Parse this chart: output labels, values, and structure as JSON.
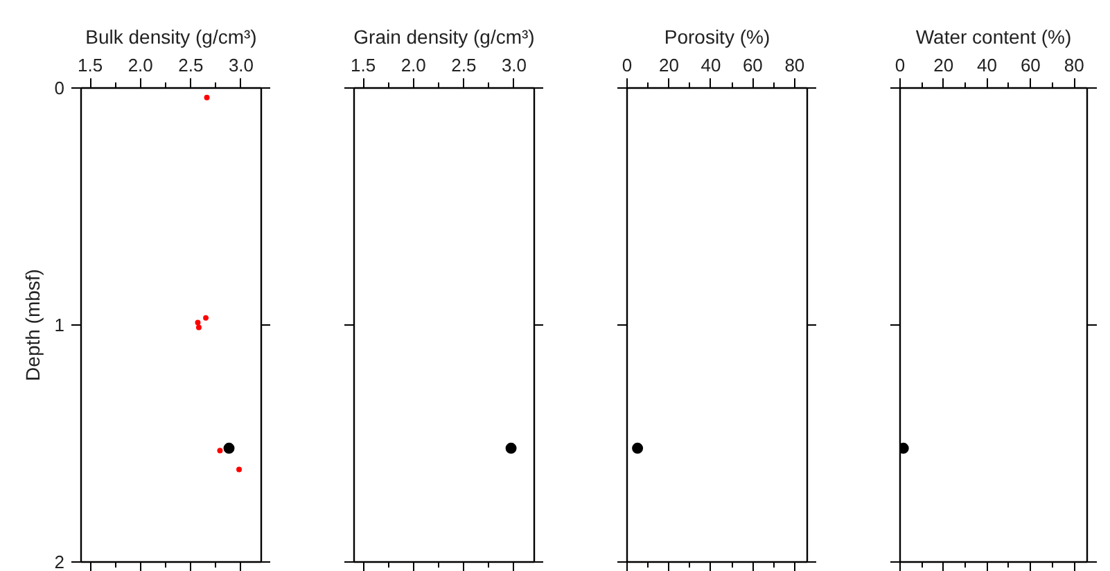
{
  "chart_data": [
    {
      "type": "scatter",
      "xlabel": "Bulk density (g/cm³)",
      "ylabel": "Depth (mbsf)",
      "xlim": [
        1.41,
        3.2
      ],
      "ylim": [
        2,
        0
      ],
      "xticks": [
        {
          "value": 1.5,
          "label": "1.5"
        },
        {
          "value": 1.75,
          "label": null
        },
        {
          "value": 2.0,
          "label": "2.0"
        },
        {
          "value": 2.25,
          "label": null
        },
        {
          "value": 2.5,
          "label": "2.5"
        },
        {
          "value": 2.75,
          "label": null
        },
        {
          "value": 3.0,
          "label": "3.0"
        }
      ],
      "yticks": [
        0,
        1,
        2
      ],
      "grid": false,
      "marker": "circle",
      "series": [
        {
          "color": "#ff0000",
          "x": [
            2.66,
            2.65,
            2.57,
            2.58,
            2.79,
            2.98
          ],
          "values": [
            0.04,
            0.97,
            0.99,
            1.01,
            1.53,
            1.61
          ]
        },
        {
          "color": "#000000",
          "x": [
            2.88
          ],
          "values": [
            1.52
          ]
        }
      ]
    },
    {
      "type": "scatter",
      "xlabel": "Grain density (g/cm³)",
      "xlim": [
        1.41,
        3.2
      ],
      "ylim": [
        2,
        0
      ],
      "xticks": [
        {
          "value": 1.5,
          "label": "1.5"
        },
        {
          "value": 1.75,
          "label": null
        },
        {
          "value": 2.0,
          "label": "2.0"
        },
        {
          "value": 2.25,
          "label": null
        },
        {
          "value": 2.5,
          "label": "2.5"
        },
        {
          "value": 2.75,
          "label": null
        },
        {
          "value": 3.0,
          "label": "3.0"
        }
      ],
      "yticks": [
        0,
        1,
        2
      ],
      "tick_labels": "x",
      "grid": false,
      "marker": "circle",
      "series": [
        {
          "color": "#000000",
          "x": [
            2.97
          ],
          "values": [
            1.52
          ]
        }
      ]
    },
    {
      "type": "scatter",
      "xlabel": "Porosity (%)",
      "xlim": [
        0,
        86
      ],
      "ylim": [
        2,
        0
      ],
      "xticks": [
        0,
        {
          "value": 10,
          "label": null
        },
        20,
        {
          "value": 30,
          "label": null
        },
        40,
        {
          "value": 50,
          "label": null
        },
        60,
        {
          "value": 70,
          "label": null
        },
        80
      ],
      "yticks": [
        0,
        1,
        2
      ],
      "tick_labels": "x",
      "grid": false,
      "marker": "circle",
      "series": [
        {
          "color": "#000000",
          "x": [
            5
          ],
          "values": [
            1.52
          ]
        }
      ]
    },
    {
      "type": "scatter",
      "xlabel": "Water content (%)",
      "xlim": [
        0,
        86
      ],
      "ylim": [
        2,
        0
      ],
      "xticks": [
        0,
        {
          "value": 10,
          "label": null
        },
        20,
        {
          "value": 30,
          "label": null
        },
        40,
        {
          "value": 50,
          "label": null
        },
        60,
        {
          "value": 70,
          "label": null
        },
        80
      ],
      "yticks": [
        0,
        1,
        2
      ],
      "tick_labels": "x",
      "grid": false,
      "marker": "circle",
      "series": [
        {
          "color": "#000000",
          "x": [
            1.5
          ],
          "values": [
            1.52
          ]
        }
      ]
    }
  ]
}
